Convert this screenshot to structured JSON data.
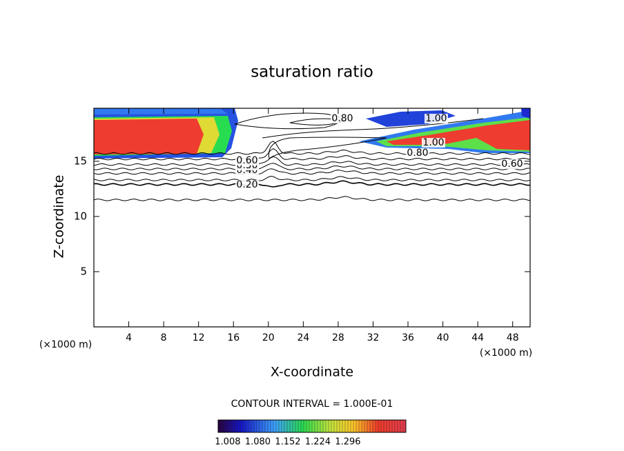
{
  "chart_data": {
    "type": "contour",
    "title": "saturation ratio",
    "x_label": "X-coordinate",
    "y_label": "Z-coordinate",
    "x_unit": "(×1000 m)",
    "xlim": [
      0,
      50
    ],
    "ylim": [
      0,
      19.8
    ],
    "xticks": [
      4,
      8,
      12,
      16,
      20,
      24,
      28,
      32,
      36,
      40,
      44,
      48
    ],
    "yticks": [
      5,
      10,
      15
    ],
    "contour_levels": [
      0.1,
      0.2,
      0.3,
      0.4,
      0.5,
      0.6,
      0.8,
      1.0
    ],
    "contour_labels": [
      {
        "value": 0.2,
        "label": "0.20"
      },
      {
        "value": 0.4,
        "label": "0.40"
      },
      {
        "value": 0.5,
        "label": "0.50"
      },
      {
        "value": 0.6,
        "label": "0.60"
      },
      {
        "value": 0.8,
        "label": "0.80"
      },
      {
        "value": 1.0,
        "label": "1.00"
      }
    ],
    "contour_interval": "CONTOUR INTERVAL = 1.000E-01",
    "colorbar": {
      "lim": [
        0.985,
        1.435
      ],
      "ticks": [
        {
          "value": 1.008,
          "label": "1.008"
        },
        {
          "value": 1.08,
          "label": "1.080"
        },
        {
          "value": 1.152,
          "label": "1.152"
        },
        {
          "value": 1.224,
          "label": "1.224"
        },
        {
          "value": 1.296,
          "label": "1.296"
        }
      ]
    }
  }
}
